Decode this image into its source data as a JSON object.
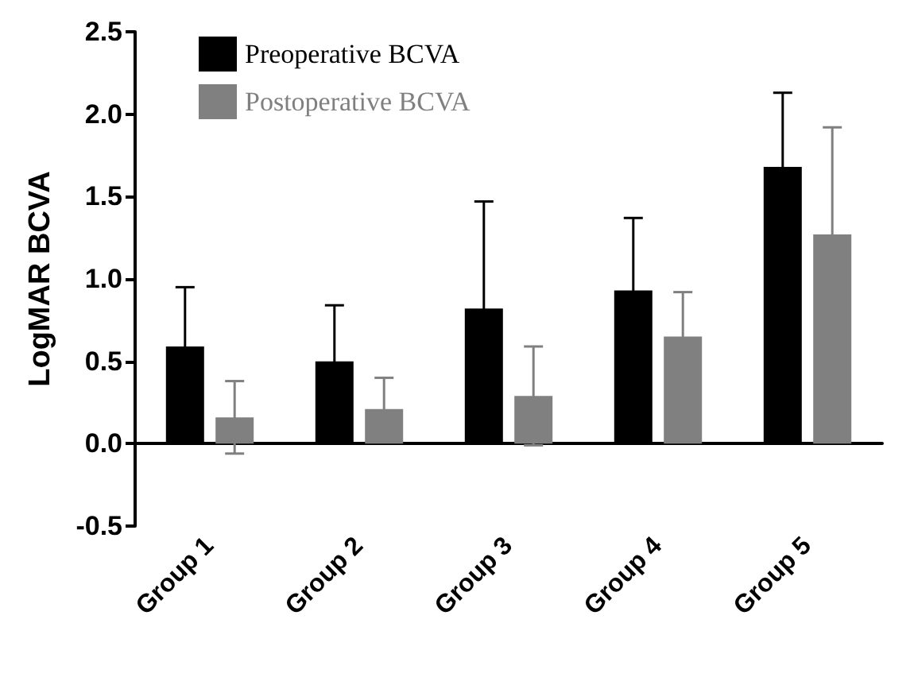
{
  "chart_data": {
    "type": "bar",
    "ylabel": "LogMAR BCVA",
    "categories": [
      "Group 1",
      "Group 2",
      "Group 3",
      "Group 4",
      "Group 5"
    ],
    "series": [
      {
        "name": "Preoperative BCVA",
        "color": "#000000",
        "values": [
          0.59,
          0.5,
          0.82,
          0.93,
          1.68
        ],
        "errors": [
          0.36,
          0.34,
          0.65,
          0.44,
          0.45
        ]
      },
      {
        "name": "Postoperative BCVA",
        "color": "#808080",
        "values": [
          0.16,
          0.21,
          0.29,
          0.65,
          1.27
        ],
        "errors": [
          0.22,
          0.19,
          0.3,
          0.27,
          0.65
        ]
      }
    ],
    "ylim": [
      -0.5,
      2.5
    ],
    "yticks": [
      -0.5,
      {
        "value": 0,
        "label": "0.0"
      },
      0.5,
      {
        "value": 1,
        "label": "1.0"
      },
      1.5,
      {
        "value": 2,
        "label": "2.0"
      },
      2.5
    ],
    "legend": "top left"
  }
}
